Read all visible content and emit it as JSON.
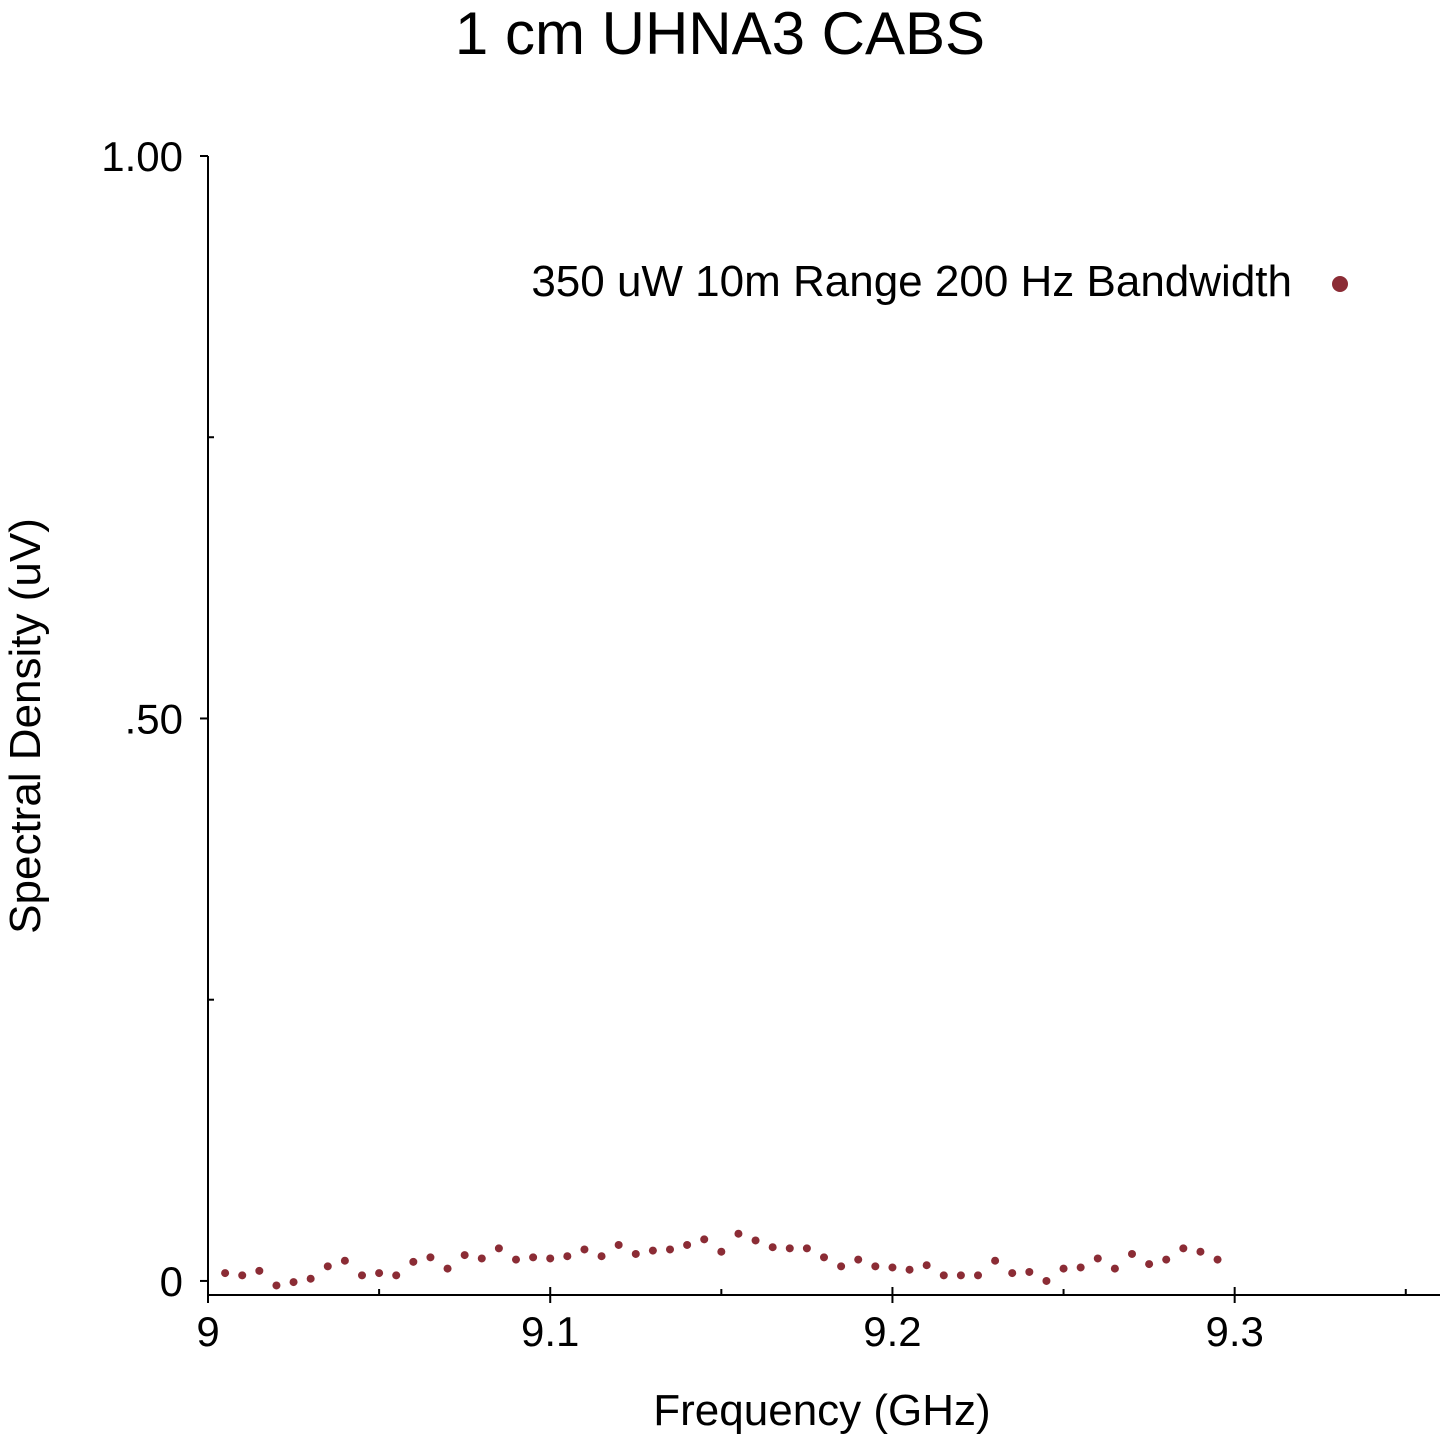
{
  "colors": {
    "series": "#8b2c35",
    "axis": "#000000",
    "background": "#ffffff"
  },
  "chart_data": {
    "type": "scatter",
    "title": "1 cm UHNA3 CABS",
    "xlabel": "Frequency (GHz)",
    "ylabel": "Spectral Density (uV)",
    "xlim": [
      9.0,
      9.36
    ],
    "ylim": [
      -0.0125,
      1.0
    ],
    "grid": false,
    "legend_position": "top-right",
    "x_ticks": [
      {
        "value": 9.0,
        "label": "9"
      },
      {
        "value": 9.1,
        "label": "9.1"
      },
      {
        "value": 9.2,
        "label": "9.2"
      },
      {
        "value": 9.3,
        "label": "9.3"
      }
    ],
    "x_minor_ticks": [
      9.05,
      9.15,
      9.25,
      9.35
    ],
    "y_ticks": [
      {
        "value": 0.0,
        "label": "0"
      },
      {
        "value": 0.5,
        "label": ".50"
      },
      {
        "value": 1.0,
        "label": "1.00"
      }
    ],
    "y_minor_ticks": [
      0.25,
      0.75
    ],
    "series": [
      {
        "name": "350 uW 10m Range 200 Hz Bandwidth",
        "x": [
          9.005,
          9.01,
          9.015,
          9.02,
          9.025,
          9.03,
          9.035,
          9.04,
          9.045,
          9.05,
          9.055,
          9.06,
          9.065,
          9.07,
          9.075,
          9.08,
          9.085,
          9.09,
          9.095,
          9.1,
          9.105,
          9.11,
          9.115,
          9.12,
          9.125,
          9.13,
          9.135,
          9.14,
          9.145,
          9.15,
          9.155,
          9.16,
          9.165,
          9.17,
          9.175,
          9.18,
          9.185,
          9.19,
          9.195,
          9.2,
          9.205,
          9.21,
          9.215,
          9.22,
          9.225,
          9.23,
          9.235,
          9.24,
          9.245,
          9.25,
          9.255,
          9.26,
          9.265,
          9.27,
          9.275,
          9.28,
          9.285,
          9.29,
          9.295
        ],
        "y": [
          0.007,
          0.005,
          0.009,
          -0.004,
          -0.001,
          0.002,
          0.013,
          0.018,
          0.005,
          0.007,
          0.005,
          0.017,
          0.021,
          0.011,
          0.023,
          0.02,
          0.029,
          0.019,
          0.021,
          0.02,
          0.022,
          0.028,
          0.022,
          0.032,
          0.024,
          0.027,
          0.028,
          0.032,
          0.037,
          0.026,
          0.042,
          0.036,
          0.03,
          0.029,
          0.029,
          0.021,
          0.013,
          0.019,
          0.013,
          0.012,
          0.01,
          0.014,
          0.005,
          0.005,
          0.005,
          0.018,
          0.007,
          0.008,
          0.0,
          0.011,
          0.012,
          0.02,
          0.011,
          0.024,
          0.015,
          0.019,
          0.029,
          0.026,
          0.019
        ]
      }
    ]
  }
}
